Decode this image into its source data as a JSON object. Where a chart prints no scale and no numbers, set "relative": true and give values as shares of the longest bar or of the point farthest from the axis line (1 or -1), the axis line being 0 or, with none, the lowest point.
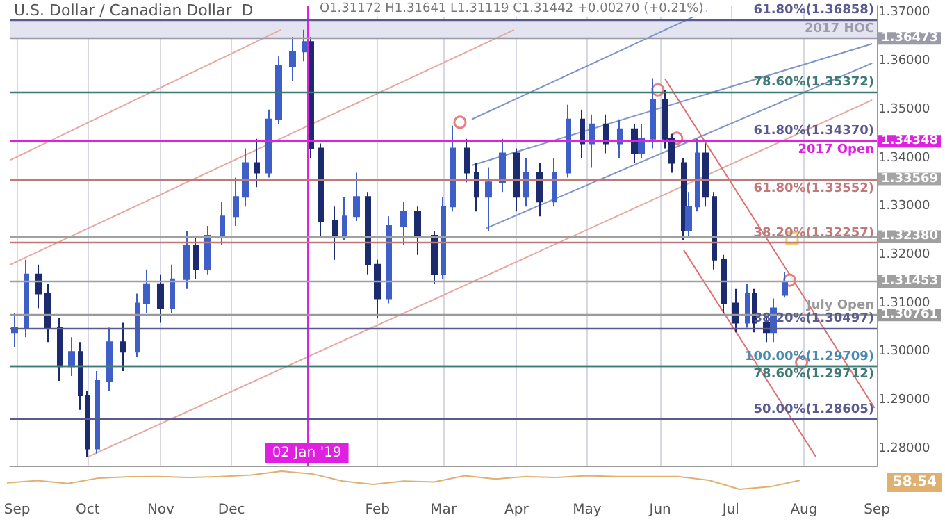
{
  "chart_data": [
    {
      "type": "candlestick",
      "title": "U.S. Dollar / Canadian Dollar  D",
      "subtitle": "O1.31172 H1.31641 L1.31119 C1.31442 +0.00270 (+0.21%)",
      "xlim": [
        "2018-08-29",
        "2019-09-01"
      ],
      "xticks": [
        {
          "value": "2018-09-01",
          "label": "Sep"
        },
        {
          "value": "2018-10-01",
          "label": "Oct"
        },
        {
          "value": "2018-11-01",
          "label": "Nov"
        },
        {
          "value": "2018-12-01",
          "label": "Dec"
        },
        {
          "value": "2019-02-01",
          "label": "Feb"
        },
        {
          "value": "2019-03-01",
          "label": "Mar"
        },
        {
          "value": "2019-04-01",
          "label": "Apr"
        },
        {
          "value": "2019-05-01",
          "label": "May"
        },
        {
          "value": "2019-06-01",
          "label": "Jun"
        },
        {
          "value": "2019-07-01",
          "label": "Jul"
        },
        {
          "value": "2019-08-01",
          "label": "Aug"
        },
        {
          "value": "2019-09-01",
          "label": "Sep"
        }
      ],
      "ylim": [
        1.2765,
        1.3715
      ],
      "yticks": [
        {
          "value": 1.28,
          "label": "1.28000"
        },
        {
          "value": 1.29,
          "label": "1.29000"
        },
        {
          "value": 1.3,
          "label": "1.30000"
        },
        {
          "value": 1.31,
          "label": "1.31000"
        },
        {
          "value": 1.32,
          "label": "1.32000"
        },
        {
          "value": 1.33,
          "label": "1.33000"
        },
        {
          "value": 1.34,
          "label": "1.34000"
        },
        {
          "value": 1.35,
          "label": "1.35000"
        },
        {
          "value": 1.36,
          "label": "1.36000"
        },
        {
          "value": 1.37,
          "label": "1.37000"
        },
        {
          "value": 1.36473,
          "label": "1.36473"
        },
        {
          "value": 1.34348,
          "label": "1.34348"
        },
        {
          "value": 1.33569,
          "label": "1.33569"
        },
        {
          "value": 1.3238,
          "label": "1.32380"
        },
        {
          "value": 1.31453,
          "label": "1.31453"
        },
        {
          "value": 1.30761,
          "label": "1.30761"
        }
      ],
      "grid": "x",
      "bands": [
        {
          "axis": "y",
          "from": 1.36473,
          "to": 1.36858,
          "label": null,
          "color": "#e4e4f0"
        }
      ],
      "ref_lines": [
        {
          "axis": "x",
          "value": "2019-01-02",
          "label": "02 Jan '19",
          "color": "#e020e0"
        },
        {
          "axis": "y",
          "value": 1.36858,
          "label": "61.80%(1.36858)",
          "color": "#5a5a90"
        },
        {
          "axis": "y",
          "value": 1.36473,
          "label": "2017 HOC",
          "color": "#9a9aa8"
        },
        {
          "axis": "y",
          "value": 1.35372,
          "label": "78.60%(1.35372)",
          "color": "#3f7a74"
        },
        {
          "axis": "y",
          "value": 1.3437,
          "label": "61.80%(1.34370)",
          "color": "#5a5a90"
        },
        {
          "axis": "y",
          "value": 1.34348,
          "label": "2017 Open",
          "color": "#e020e0"
        },
        {
          "axis": "y",
          "value": 1.33569,
          "label": null,
          "color": "#a5a5a5"
        },
        {
          "axis": "y",
          "value": 1.33552,
          "label": "61.80%(1.33552)",
          "color": "#c07878"
        },
        {
          "axis": "y",
          "value": 1.3238,
          "label": null,
          "color": "#a0a0a0"
        },
        {
          "axis": "y",
          "value": 1.32257,
          "label": "38.20%(1.32257)",
          "color": "#c07878"
        },
        {
          "axis": "y",
          "value": 1.31453,
          "label": null,
          "color": "#a0a0a0"
        },
        {
          "axis": "y",
          "value": 1.30761,
          "label": "July Open",
          "color": "#9a9a9a"
        },
        {
          "axis": "y",
          "value": 1.30497,
          "label": "38.20%(1.30497)",
          "color": "#5a5a90"
        },
        {
          "axis": "y",
          "value": 1.29709,
          "label": "100.00%(1.29709)",
          "color": "#4a8ab0"
        },
        {
          "axis": "y",
          "value": 1.29712,
          "label": "78.60%(1.29712)",
          "color": "#3f7a74"
        },
        {
          "axis": "y",
          "value": 1.28605,
          "label": "50.00%(1.28605)",
          "color": "#5a5a90"
        }
      ],
      "series": [
        {
          "type": "line",
          "color": "#e8a8a0",
          "marker": "none",
          "x": [
            "2018-10-01",
            "2019-08-30"
          ],
          "values": [
            1.2783,
            1.352
          ]
        },
        {
          "type": "line",
          "color": "#e8a8a0",
          "marker": "none",
          "x": [
            "2018-08-29",
            "2018-12-22"
          ],
          "values": [
            1.3396,
            1.3665
          ]
        },
        {
          "type": "line",
          "color": "#e8a8a0",
          "marker": "none",
          "x": [
            "2018-08-29",
            "2019-03-31"
          ],
          "values": [
            1.318,
            1.3665
          ]
        },
        {
          "type": "line",
          "color": "#7f95cc",
          "marker": "none",
          "x": [
            "2019-03-13",
            "2019-06-21"
          ],
          "values": [
            1.348,
            1.3705
          ]
        },
        {
          "type": "line",
          "color": "#7f95cc",
          "marker": "none",
          "x": [
            "2019-03-13",
            "2019-08-30"
          ],
          "values": [
            1.3385,
            1.3636
          ]
        },
        {
          "type": "line",
          "color": "#7f95cc",
          "marker": "none",
          "x": [
            "2019-03-19",
            "2019-08-30"
          ],
          "values": [
            1.3255,
            1.3596
          ]
        },
        {
          "type": "line",
          "color": "#e07070",
          "marker": "none",
          "x": [
            "2019-06-03",
            "2019-08-31"
          ],
          "values": [
            1.3564,
            1.2884
          ]
        },
        {
          "type": "line",
          "color": "#e07070",
          "marker": "none",
          "x": [
            "2019-06-11",
            "2019-08-06"
          ],
          "values": [
            1.321,
            1.2784
          ]
        },
        {
          "type": "candlestick",
          "colors": [
            "#3f5fc8",
            "#3f5fc8",
            "#1c2b6e",
            "#1c2b6e",
            "#1c2b6e",
            "#3f5fc8",
            "#1c2b6e",
            "#1c2b6e",
            "#3f5fc8",
            "#3f5fc8",
            "#1c2b6e",
            "#3f5fc8",
            "#3f5fc8",
            "#1c2b6e",
            "#3f5fc8",
            "#3f5fc8",
            "#1c2b6e",
            "#3f5fc8",
            "#3f5fc8",
            "#3f5fc8",
            "#3f5fc8",
            "#1c2b6e",
            "#3f5fc8",
            "#3f5fc8",
            "#3f5fc8",
            "#3f5fc8",
            "#1c2b6e",
            "#1c2b6e",
            "#1c2b6e",
            "#3f5fc8",
            "#3f5fc8",
            "#1c2b6e",
            "#1c2b6e",
            "#3f5fc8",
            "#3f5fc8",
            "#1c2b6e",
            "#1c2b6e",
            "#3f5fc8",
            "#3f5fc8",
            "#1c2b6e",
            "#1c2b6e",
            "#3f5fc8",
            "#3f5fc8",
            "#1c2b6e",
            "#3f5fc8",
            "#1c2b6e",
            "#3f5fc8",
            "#3f5fc8",
            "#1c2b6e",
            "#3f5fc8",
            "#1c2b6e",
            "#3f5fc8",
            "#1c2b6e",
            "#3f5fc8",
            "#3f5fc8",
            "#1c2b6e",
            "#1c2b6e",
            "#1c2b6e",
            "#3f5fc8",
            "#3f5fc8",
            "#1c2b6e",
            "#1c2b6e",
            "#1c2b6e",
            "#1c2b6e",
            "#3f5fc8",
            "#1c2b6e",
            "#1c2b6e",
            "#3f5fc8",
            "#3f5fc8"
          ],
          "x": [
            "2018-08-31",
            "2018-09-05",
            "2018-09-10",
            "2018-09-14",
            "2018-09-19",
            "2018-09-24",
            "2018-09-28",
            "2018-10-01",
            "2018-10-05",
            "2018-10-10",
            "2018-10-16",
            "2018-10-22",
            "2018-10-26",
            "2018-11-01",
            "2018-11-06",
            "2018-11-12",
            "2018-11-16",
            "2018-11-21",
            "2018-11-27",
            "2018-12-03",
            "2018-12-07",
            "2018-12-12",
            "2018-12-17",
            "2018-12-21",
            "2018-12-27",
            "2019-01-01",
            "2019-01-04",
            "2019-01-08",
            "2019-01-14",
            "2019-01-18",
            "2019-01-23",
            "2019-01-28",
            "2019-02-01",
            "2019-02-06",
            "2019-02-12",
            "2019-02-18",
            "2019-02-25",
            "2019-03-01",
            "2019-03-05",
            "2019-03-11",
            "2019-03-15",
            "2019-03-20",
            "2019-03-26",
            "2019-04-01",
            "2019-04-05",
            "2019-04-11",
            "2019-04-17",
            "2019-04-23",
            "2019-04-29",
            "2019-05-03",
            "2019-05-09",
            "2019-05-15",
            "2019-05-21",
            "2019-05-24",
            "2019-05-29",
            "2019-06-03",
            "2019-06-06",
            "2019-06-11",
            "2019-06-13",
            "2019-06-17",
            "2019-06-20",
            "2019-06-24",
            "2019-06-28",
            "2019-07-03",
            "2019-07-08",
            "2019-07-11",
            "2019-07-16",
            "2019-07-19",
            "2019-07-24"
          ],
          "ohlc": [
            [
              1.304,
              1.308,
              1.301,
              1.305
            ],
            [
              1.305,
              1.319,
              1.303,
              1.316
            ],
            [
              1.316,
              1.318,
              1.309,
              1.312
            ],
            [
              1.312,
              1.314,
              1.302,
              1.305
            ],
            [
              1.305,
              1.307,
              1.294,
              1.297
            ],
            [
              1.297,
              1.303,
              1.295,
              1.3
            ],
            [
              1.3,
              1.302,
              1.288,
              1.291
            ],
            [
              1.291,
              1.292,
              1.2783,
              1.28
            ],
            [
              1.28,
              1.296,
              1.279,
              1.294
            ],
            [
              1.294,
              1.305,
              1.292,
              1.302
            ],
            [
              1.302,
              1.306,
              1.296,
              1.3
            ],
            [
              1.3,
              1.312,
              1.299,
              1.31
            ],
            [
              1.31,
              1.317,
              1.308,
              1.314
            ],
            [
              1.314,
              1.316,
              1.306,
              1.309
            ],
            [
              1.309,
              1.318,
              1.308,
              1.315
            ],
            [
              1.315,
              1.325,
              1.313,
              1.322
            ],
            [
              1.322,
              1.324,
              1.315,
              1.317
            ],
            [
              1.317,
              1.326,
              1.316,
              1.324
            ],
            [
              1.324,
              1.331,
              1.322,
              1.328
            ],
            [
              1.328,
              1.336,
              1.326,
              1.332
            ],
            [
              1.332,
              1.342,
              1.33,
              1.339
            ],
            [
              1.339,
              1.344,
              1.334,
              1.337
            ],
            [
              1.337,
              1.35,
              1.336,
              1.348
            ],
            [
              1.348,
              1.361,
              1.347,
              1.359
            ],
            [
              1.359,
              1.365,
              1.356,
              1.362
            ],
            [
              1.362,
              1.3665,
              1.36,
              1.364
            ],
            [
              1.364,
              1.365,
              1.34,
              1.342
            ],
            [
              1.342,
              1.343,
              1.324,
              1.327
            ],
            [
              1.327,
              1.33,
              1.319,
              1.324
            ],
            [
              1.324,
              1.332,
              1.323,
              1.328
            ],
            [
              1.328,
              1.337,
              1.327,
              1.332
            ],
            [
              1.332,
              1.333,
              1.316,
              1.318
            ],
            [
              1.318,
              1.319,
              1.307,
              1.311
            ],
            [
              1.311,
              1.328,
              1.31,
              1.326
            ],
            [
              1.326,
              1.331,
              1.322,
              1.329
            ],
            [
              1.329,
              1.33,
              1.32,
              1.324
            ],
            [
              1.324,
              1.325,
              1.314,
              1.316
            ],
            [
              1.316,
              1.332,
              1.315,
              1.33
            ],
            [
              1.33,
              1.3467,
              1.329,
              1.342
            ],
            [
              1.342,
              1.344,
              1.335,
              1.337
            ],
            [
              1.337,
              1.339,
              1.329,
              1.332
            ],
            [
              1.332,
              1.338,
              1.325,
              1.335
            ],
            [
              1.335,
              1.344,
              1.333,
              1.341
            ],
            [
              1.341,
              1.342,
              1.329,
              1.332
            ],
            [
              1.332,
              1.34,
              1.33,
              1.337
            ],
            [
              1.337,
              1.339,
              1.328,
              1.331
            ],
            [
              1.331,
              1.34,
              1.33,
              1.337
            ],
            [
              1.337,
              1.351,
              1.336,
              1.348
            ],
            [
              1.348,
              1.35,
              1.34,
              1.343
            ],
            [
              1.343,
              1.349,
              1.338,
              1.347
            ],
            [
              1.347,
              1.349,
              1.341,
              1.343
            ],
            [
              1.343,
              1.348,
              1.34,
              1.346
            ],
            [
              1.346,
              1.347,
              1.339,
              1.341
            ],
            [
              1.341,
              1.347,
              1.34,
              1.344
            ],
            [
              1.344,
              1.3565,
              1.342,
              1.352
            ],
            [
              1.352,
              1.354,
              1.342,
              1.344
            ],
            [
              1.344,
              1.345,
              1.337,
              1.339
            ],
            [
              1.339,
              1.34,
              1.323,
              1.325
            ],
            [
              1.325,
              1.333,
              1.324,
              1.33
            ],
            [
              1.33,
              1.344,
              1.329,
              1.341
            ],
            [
              1.341,
              1.343,
              1.33,
              1.332
            ],
            [
              1.332,
              1.333,
              1.317,
              1.319
            ],
            [
              1.319,
              1.32,
              1.308,
              1.31
            ],
            [
              1.31,
              1.313,
              1.304,
              1.306
            ],
            [
              1.306,
              1.314,
              1.305,
              1.312
            ],
            [
              1.312,
              1.313,
              1.304,
              1.306
            ],
            [
              1.306,
              1.308,
              1.302,
              1.304
            ],
            [
              1.304,
              1.311,
              1.302,
              1.309
            ],
            [
              1.31172,
              1.31641,
              1.31119,
              1.31442
            ]
          ]
        },
        {
          "type": "scatter",
          "color": "#e06060",
          "marker": "circle",
          "x": [
            "2019-03-08",
            "2019-05-31",
            "2019-06-08",
            "2019-07-26",
            "2019-07-31"
          ],
          "values": [
            1.3474,
            1.3541,
            1.3441,
            1.3148,
            1.2978
          ]
        },
        {
          "type": "scatter",
          "color": "#e8c040",
          "marker": "square",
          "x": [
            "2019-07-27"
          ],
          "values": [
            1.3235
          ]
        }
      ]
    },
    {
      "type": "line",
      "relative": true,
      "color": "#e0b070",
      "marker": "none",
      "categories": [
        null,
        null,
        null,
        null,
        null,
        null,
        null,
        null,
        null,
        null,
        null,
        null,
        null,
        null,
        null,
        null,
        null,
        null,
        null,
        null,
        null,
        null,
        null,
        null,
        null,
        null,
        null
      ],
      "values": [
        0.36,
        0.48,
        0.32,
        0.62,
        0.69,
        0.7,
        0.65,
        0.7,
        0.79,
        1,
        0.85,
        0.45,
        0.27,
        0.45,
        0.4,
        0.75,
        0.57,
        0.7,
        0.65,
        0.75,
        0.7,
        0.7,
        0.7,
        0.5,
        0,
        0.14,
        0.5
      ],
      "annotations": [
        "58.54"
      ]
    }
  ]
}
